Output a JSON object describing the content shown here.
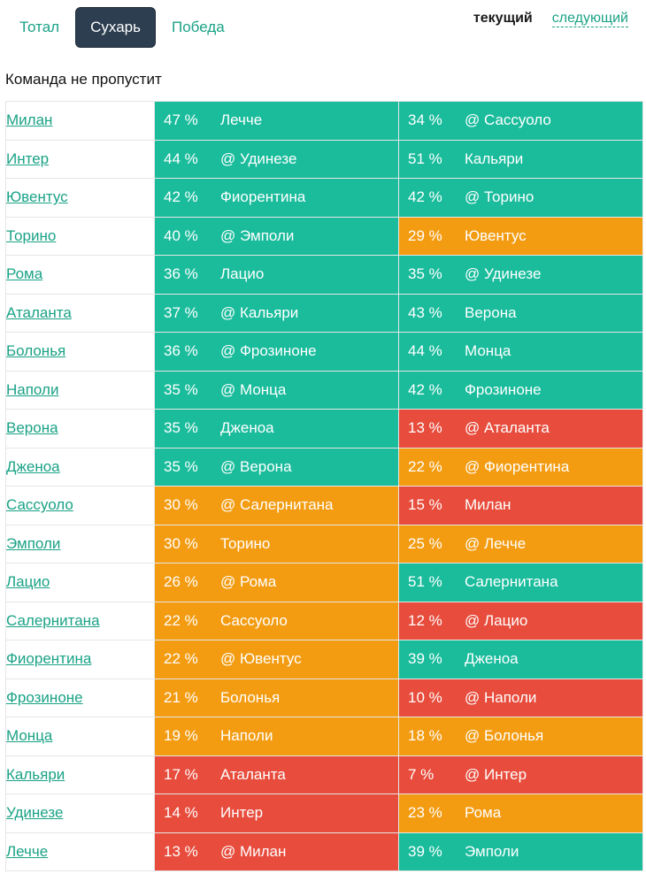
{
  "tabs": [
    {
      "label": "Тотал",
      "active": false
    },
    {
      "label": "Сухарь",
      "active": true
    },
    {
      "label": "Победа",
      "active": false
    }
  ],
  "rounds": {
    "current": "текущий",
    "next": "следующий"
  },
  "section_title": "Команда не пропустит",
  "colors": {
    "green": "#1abc9c",
    "orange": "#f39c12",
    "red": "#e74c3c",
    "link": "#1aa286",
    "active_tab": "#2c3e50"
  },
  "rows": [
    {
      "team": "Милан",
      "cur": {
        "pct": "47 %",
        "opp": "Лечче",
        "level": "green"
      },
      "next": {
        "pct": "34 %",
        "opp": "@ Сассуоло",
        "level": "green"
      }
    },
    {
      "team": "Интер",
      "cur": {
        "pct": "44 %",
        "opp": "@ Удинезе",
        "level": "green"
      },
      "next": {
        "pct": "51 %",
        "opp": "Кальяри",
        "level": "green"
      }
    },
    {
      "team": "Ювентус",
      "cur": {
        "pct": "42 %",
        "opp": "Фиорентина",
        "level": "green"
      },
      "next": {
        "pct": "42 %",
        "opp": "@ Торино",
        "level": "green"
      }
    },
    {
      "team": "Торино",
      "cur": {
        "pct": "40 %",
        "opp": "@ Эмполи",
        "level": "green"
      },
      "next": {
        "pct": "29 %",
        "opp": "Ювентус",
        "level": "orange"
      }
    },
    {
      "team": "Рома",
      "cur": {
        "pct": "36 %",
        "opp": "Лацио",
        "level": "green"
      },
      "next": {
        "pct": "35 %",
        "opp": "@ Удинезе",
        "level": "green"
      }
    },
    {
      "team": "Аталанта",
      "cur": {
        "pct": "37 %",
        "opp": "@ Кальяри",
        "level": "green"
      },
      "next": {
        "pct": "43 %",
        "opp": "Верона",
        "level": "green"
      }
    },
    {
      "team": "Болонья",
      "cur": {
        "pct": "36 %",
        "opp": "@ Фрозиноне",
        "level": "green"
      },
      "next": {
        "pct": "44 %",
        "opp": "Монца",
        "level": "green"
      }
    },
    {
      "team": "Наполи",
      "cur": {
        "pct": "35 %",
        "opp": "@ Монца",
        "level": "green"
      },
      "next": {
        "pct": "42 %",
        "opp": "Фрозиноне",
        "level": "green"
      }
    },
    {
      "team": "Верона",
      "cur": {
        "pct": "35 %",
        "opp": "Дженоа",
        "level": "green"
      },
      "next": {
        "pct": "13 %",
        "opp": "@ Аталанта",
        "level": "red"
      }
    },
    {
      "team": "Дженоа",
      "cur": {
        "pct": "35 %",
        "opp": "@ Верона",
        "level": "green"
      },
      "next": {
        "pct": "22 %",
        "opp": "@ Фиорентина",
        "level": "orange"
      }
    },
    {
      "team": "Сассуоло",
      "cur": {
        "pct": "30 %",
        "opp": "@ Салернитана",
        "level": "orange"
      },
      "next": {
        "pct": "15 %",
        "opp": "Милан",
        "level": "red"
      }
    },
    {
      "team": "Эмполи",
      "cur": {
        "pct": "30 %",
        "opp": "Торино",
        "level": "orange"
      },
      "next": {
        "pct": "25 %",
        "opp": "@ Лечче",
        "level": "orange"
      }
    },
    {
      "team": "Лацио",
      "cur": {
        "pct": "26 %",
        "opp": "@ Рома",
        "level": "orange"
      },
      "next": {
        "pct": "51 %",
        "opp": "Салернитана",
        "level": "green"
      }
    },
    {
      "team": "Салернитана",
      "cur": {
        "pct": "22 %",
        "opp": "Сассуоло",
        "level": "orange"
      },
      "next": {
        "pct": "12 %",
        "opp": "@ Лацио",
        "level": "red"
      }
    },
    {
      "team": "Фиорентина",
      "cur": {
        "pct": "22 %",
        "opp": "@ Ювентус",
        "level": "orange"
      },
      "next": {
        "pct": "39 %",
        "opp": "Дженоа",
        "level": "green"
      }
    },
    {
      "team": "Фрозиноне",
      "cur": {
        "pct": "21 %",
        "opp": "Болонья",
        "level": "orange"
      },
      "next": {
        "pct": "10 %",
        "opp": "@ Наполи",
        "level": "red"
      }
    },
    {
      "team": "Монца",
      "cur": {
        "pct": "19 %",
        "opp": "Наполи",
        "level": "orange"
      },
      "next": {
        "pct": "18 %",
        "opp": "@ Болонья",
        "level": "orange"
      }
    },
    {
      "team": "Кальяри",
      "cur": {
        "pct": "17 %",
        "opp": "Аталанта",
        "level": "red"
      },
      "next": {
        "pct": "7 %",
        "opp": "@ Интер",
        "level": "red"
      }
    },
    {
      "team": "Удинезе",
      "cur": {
        "pct": "14 %",
        "opp": "Интер",
        "level": "red"
      },
      "next": {
        "pct": "23 %",
        "opp": "Рома",
        "level": "orange"
      }
    },
    {
      "team": "Лечче",
      "cur": {
        "pct": "13 %",
        "opp": "@ Милан",
        "level": "red"
      },
      "next": {
        "pct": "39 %",
        "opp": "Эмполи",
        "level": "green"
      }
    }
  ]
}
